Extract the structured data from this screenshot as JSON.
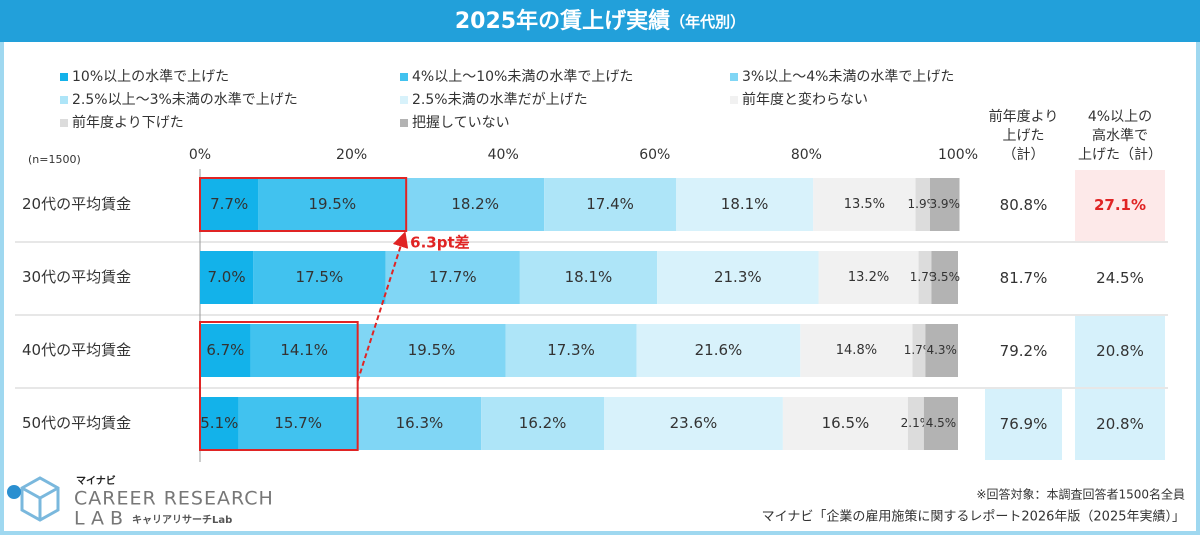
{
  "chart_data": {
    "type": "stacked_barh",
    "title": "2025年の賃上げ実績",
    "subtitle": "（年代別）",
    "sample_note": "(n=1500)",
    "categories": [
      "20代の平均賃金",
      "30代の平均賃金",
      "40代の平均賃金",
      "50代の平均賃金"
    ],
    "series": [
      {
        "name": "10%以上の水準で上げた",
        "color": "#13b2ea",
        "values": [
          7.7,
          7.0,
          6.7,
          5.1
        ],
        "value_labels": [
          "7.7%",
          "7.0%",
          "6.7%",
          "5.1%"
        ]
      },
      {
        "name": "4%以上～10%未満の水準で上げた",
        "color": "#41c2ef",
        "values": [
          19.5,
          17.5,
          14.1,
          15.7
        ],
        "value_labels": [
          "19.5%",
          "17.5%",
          "14.1%",
          "15.7%"
        ]
      },
      {
        "name": "3%以上～4%未満の水準で上げた",
        "color": "#80d6f5",
        "values": [
          18.2,
          17.7,
          19.5,
          16.3
        ],
        "value_labels": [
          "18.2%",
          "17.7%",
          "19.5%",
          "16.3%"
        ]
      },
      {
        "name": "2.5%以上～3%未満の水準で上げた",
        "color": "#aee5f8",
        "values": [
          17.4,
          18.1,
          17.3,
          16.2
        ],
        "value_labels": [
          "17.4%",
          "18.1%",
          "17.3%",
          "16.2%"
        ]
      },
      {
        "name": "2.5%未満の水準だが上げた",
        "color": "#d8f2fb",
        "values": [
          18.1,
          21.3,
          21.6,
          23.6
        ],
        "value_labels": [
          "18.1%",
          "21.3%",
          "21.6%",
          "23.6%"
        ]
      },
      {
        "name": "前年度と変わらない",
        "color": "#f1f1f1",
        "values": [
          13.5,
          13.2,
          14.8,
          16.5
        ],
        "value_labels": [
          "13.5%",
          "13.2%",
          "14.8%",
          "16.5%"
        ]
      },
      {
        "name": "前年度より下げた",
        "color": "#dcdcdc",
        "values": [
          1.9,
          1.7,
          1.7,
          2.1
        ],
        "value_labels": [
          "1.9%",
          "1.7%",
          "1.7%",
          "2.1%"
        ]
      },
      {
        "name": "把握していない",
        "color": "#b3b3b3",
        "values": [
          3.9,
          3.5,
          4.3,
          4.5
        ],
        "value_labels": [
          "3.9%",
          "3.5%",
          "4.3%",
          "4.5%"
        ]
      }
    ],
    "xlim": [
      0,
      100
    ],
    "xticks": [
      {
        "value": 0,
        "label": "0%"
      },
      {
        "value": 20,
        "label": "20%"
      },
      {
        "value": 40,
        "label": "40%"
      },
      {
        "value": 60,
        "label": "60%"
      },
      {
        "value": 80,
        "label": "80%"
      },
      {
        "value": 100,
        "label": "100%"
      }
    ],
    "summary_columns": [
      {
        "header": [
          "前年度より",
          "上げた",
          "（計）"
        ],
        "values": [
          80.8,
          81.7,
          79.2,
          76.9
        ],
        "value_labels": [
          "80.8%",
          "81.7%",
          "79.2%",
          "76.9%"
        ],
        "cell_colors": [
          "#ffffff",
          "#ffffff",
          "#ffffff",
          "#d6f1fb"
        ],
        "text_colors": [
          "#333333",
          "#333333",
          "#333333",
          "#333333"
        ]
      },
      {
        "header": [
          "4%以上の",
          "高水準で",
          "上げた（計）"
        ],
        "values": [
          27.1,
          24.5,
          20.8,
          20.8
        ],
        "value_labels": [
          "27.1%",
          "24.5%",
          "20.8%",
          "20.8%"
        ],
        "cell_colors": [
          "#fde9e9",
          "#ffffff",
          "#d6f1fb",
          "#d6f1fb"
        ],
        "text_colors": [
          "#e02424",
          "#333333",
          "#333333",
          "#333333"
        ]
      }
    ],
    "callout": {
      "label": "6.3pt差",
      "color": "#e02424"
    }
  },
  "footer": {
    "notes": [
      "※回答対象：本調査回答者1500名全員",
      "マイナビ「企業の雇用施策に関するレポート2026年版（2025年実績）」"
    ]
  },
  "logo": {
    "brand": "マイナビ",
    "line1": "CAREER RESEARCH",
    "line2": "LAB",
    "tagline": "キャリアリサーチLab"
  }
}
